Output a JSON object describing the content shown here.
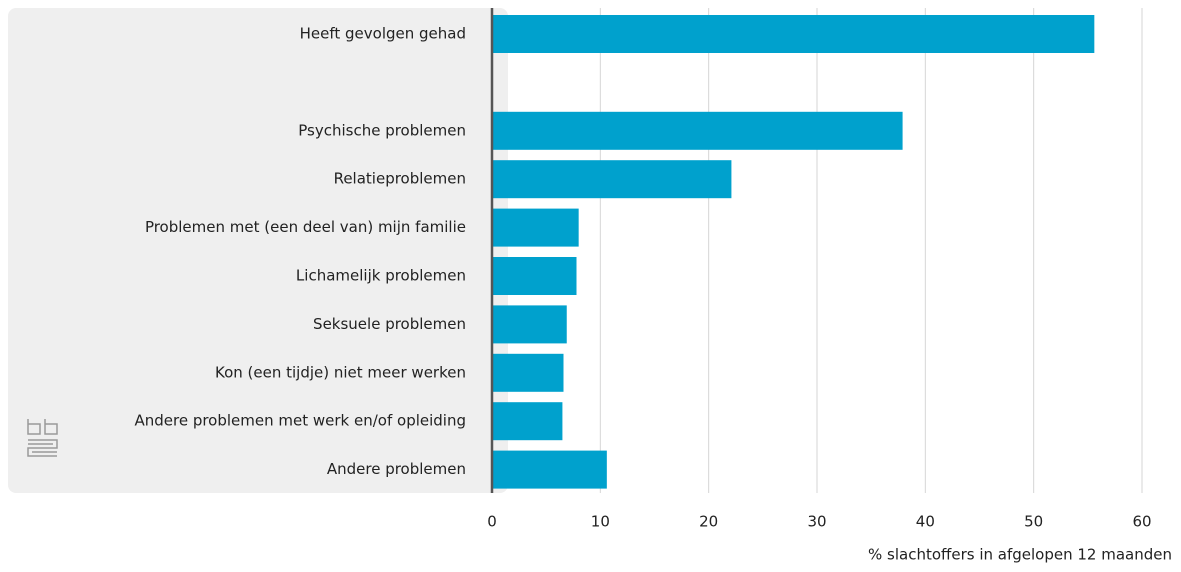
{
  "chart_data": {
    "type": "bar",
    "orientation": "horizontal",
    "categories": [
      "Heeft gevolgen gehad",
      null,
      "Psychische problemen",
      "Relatieproblemen",
      "Problemen met (een deel van) mijn familie",
      "Lichamelijk problemen",
      "Seksuele problemen",
      "Kon (een tijdje) niet meer werken",
      "Andere problemen met werk en/of opleiding",
      "Andere problemen"
    ],
    "values": [
      55.6,
      null,
      37.9,
      22.1,
      8.0,
      7.8,
      6.9,
      6.6,
      6.5,
      10.6
    ],
    "color": "#00a1cd",
    "x_label": "% slachtoffers in afgelopen 12 maanden",
    "xlim": [
      0,
      60
    ],
    "xticks": [
      0,
      10,
      20,
      30,
      40,
      50,
      60
    ],
    "grid": true
  }
}
